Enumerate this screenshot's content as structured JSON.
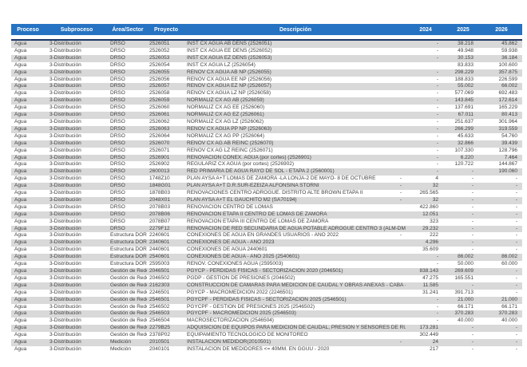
{
  "table": {
    "colors": {
      "header_bg": "#2573C2",
      "header_text": "#FFFFFF",
      "stripe": "#D9D9D9",
      "divider": "#1F3864",
      "text": "#3F3F3F"
    },
    "columns": [
      "Proceso",
      "Subproceso",
      "Área/Sector",
      "Proyecto",
      "Descripción",
      "2024",
      "2025",
      "2026"
    ],
    "rows": [
      {
        "proceso": "Agua",
        "subproceso": "3-Distribución",
        "area": "DRSO",
        "proyecto": "2526051",
        "descripcion": "INST CX AGUA AB DENS (2526051)",
        "dash": "",
        "y2024": "-",
        "y2025": "38.218",
        "y2026": "45.862"
      },
      {
        "proceso": "Agua",
        "subproceso": "3-Distribución",
        "area": "DRSO",
        "proyecto": "2526052",
        "descripcion": "INST CX AGUA EE DENS (2526052)",
        "dash": "",
        "y2024": "-",
        "y2025": "49.948",
        "y2026": "59.938"
      },
      {
        "proceso": "Agua",
        "subproceso": "3-Distribución",
        "area": "DRSO",
        "proyecto": "2526053",
        "descripcion": "INST CX AGUA EZ DENS (2526053)",
        "dash": "",
        "y2024": "-",
        "y2025": "30.153",
        "y2026": "36.184"
      },
      {
        "proceso": "Agua",
        "subproceso": "3-Distribución",
        "area": "DRSO",
        "proyecto": "2526054",
        "descripcion": "INST CX AGUA LZ (2526054)",
        "dash": "",
        "y2024": "",
        "y2025": "83.833",
        "y2026": "100.600"
      },
      {
        "proceso": "Agua",
        "subproceso": "3-Distribución",
        "area": "DRSO",
        "proyecto": "2526055",
        "descripcion": "RENOV CX AGUA AB NP (2526055)",
        "dash": "",
        "y2024": "-",
        "y2025": "298.229",
        "y2026": "357.875"
      },
      {
        "proceso": "Agua",
        "subproceso": "3-Distribución",
        "area": "DRSO",
        "proyecto": "2526056",
        "descripcion": "RENOV CX AGUA EE NP (2526056)",
        "dash": "",
        "y2024": "-",
        "y2025": "188.833",
        "y2026": "226.599"
      },
      {
        "proceso": "Agua",
        "subproceso": "3-Distribución",
        "area": "DRSO",
        "proyecto": "2526057",
        "descripcion": "RENOV CX AGUA EZ NP (2526057)",
        "dash": "",
        "y2024": "-",
        "y2025": "55.002",
        "y2026": "66.002"
      },
      {
        "proceso": "Agua",
        "subproceso": "3-Distribución",
        "area": "DRSO",
        "proyecto": "2526058",
        "descripcion": "RENOV CX AGUA LZ NP (2526058)",
        "dash": "",
        "y2024": "-",
        "y2025": "577.069",
        "y2026": "692.483"
      },
      {
        "proceso": "Agua",
        "subproceso": "3-Distribución",
        "area": "DRSO",
        "proyecto": "2526059",
        "descripcion": "NORMALIZ CX AG AB (2526059)",
        "dash": "",
        "y2024": "-",
        "y2025": "143.845",
        "y2026": "172.614"
      },
      {
        "proceso": "Agua",
        "subproceso": "3-Distribución",
        "area": "DRSO",
        "proyecto": "2526060",
        "descripcion": "NORMALIZ CX AG EE (2526060)",
        "dash": "",
        "y2024": "-",
        "y2025": "137.691",
        "y2026": "165.229"
      },
      {
        "proceso": "Agua",
        "subproceso": "3-Distribución",
        "area": "DRSO",
        "proyecto": "2526061",
        "descripcion": "NORMALIZ CX AG EZ (2526061)",
        "dash": "",
        "y2024": "-",
        "y2025": "67.011",
        "y2026": "80.413"
      },
      {
        "proceso": "Agua",
        "subproceso": "3-Distribución",
        "area": "DRSO",
        "proyecto": "2526062",
        "descripcion": "NORMALIZ CX AG LZ (2526062)",
        "dash": "",
        "y2024": "-",
        "y2025": "251.637",
        "y2026": "301.964"
      },
      {
        "proceso": "Agua",
        "subproceso": "3-Distribución",
        "area": "DRSO",
        "proyecto": "2526063",
        "descripcion": "RENOV CX AGUA PP NP (2526063)",
        "dash": "",
        "y2024": "-",
        "y2025": "266.299",
        "y2026": "319.559"
      },
      {
        "proceso": "Agua",
        "subproceso": "3-Distribución",
        "area": "DRSO",
        "proyecto": "2526064",
        "descripcion": "NORMALIZ CX AG PP (2526064)",
        "dash": "",
        "y2024": "-",
        "y2025": "45.633",
        "y2026": "54.760"
      },
      {
        "proceso": "Agua",
        "subproceso": "3-Distribución",
        "area": "DRSO",
        "proyecto": "2526070",
        "descripcion": "RENOV CX AG AB REINC (2526070)",
        "dash": "",
        "y2024": "-",
        "y2025": "32.866",
        "y2026": "39.439"
      },
      {
        "proceso": "Agua",
        "subproceso": "3-Distribución",
        "area": "DRSO",
        "proyecto": "2526071",
        "descripcion": "RENOV CX AG LZ REINC (2526071)",
        "dash": "",
        "y2024": "-",
        "y2025": "107.330",
        "y2026": "128.796"
      },
      {
        "proceso": "Agua",
        "subproceso": "3-Distribución",
        "area": "DRSO",
        "proyecto": "2526901",
        "descripcion": "RENOVACION CONEX. AGUA (por cortes) (2526901)",
        "dash": "",
        "y2024": "-",
        "y2025": "6.220",
        "y2026": "7.464"
      },
      {
        "proceso": "Agua",
        "subproceso": "3-Distribución",
        "area": "DRSO",
        "proyecto": "2526902",
        "descripcion": "REGULARIZ CX AGUA (por cortes) (2526902)",
        "dash": "",
        "y2024": "-",
        "y2025": "120.722",
        "y2026": "144.867"
      },
      {
        "proceso": "Agua",
        "subproceso": "3-Distribución",
        "area": "DRSO",
        "proyecto": "2600013",
        "descripcion": "RED PRIMARIA DE AGUA RAYO DE SOL - ETAPA 2 (2560001)",
        "dash": "",
        "y2024": "-",
        "y2025": "-",
        "y2026": "190.060"
      },
      {
        "proceso": "Agua",
        "subproceso": "3-Distribución",
        "area": "DRSO",
        "proyecto": "1748Z10",
        "descripcion": "PLAN AYSA A+T LOMAS DE ZAMORA -LA LONJA-2 DE MAYO- 8 DE OCTUBRE",
        "dash": "-",
        "y2024": "4",
        "y2025": "-",
        "y2026": "-"
      },
      {
        "proceso": "Agua",
        "subproceso": "3-Distribución",
        "area": "DRSO",
        "proyecto": "1848G01",
        "descripcion": "PLAN AYSA A+T D.R.SUR-EZEIZA ALFONSINA STORNI",
        "dash": "-",
        "y2024": "32",
        "y2025": "-",
        "y2026": "-"
      },
      {
        "proceso": "Agua",
        "subproceso": "3-Distribución",
        "area": "DRSO",
        "proyecto": "1878B03",
        "descripcion": "RENOVACIONES CENTRO ADROGUÉ. DISTRITO ALTE BROWN ETAPA II",
        "dash": "-",
        "y2024": "265.565",
        "y2025": "-",
        "y2026": "-"
      },
      {
        "proceso": "Agua",
        "subproceso": "3-Distribución",
        "area": "DRSO",
        "proyecto": "2048X01",
        "descripcion": "PLAN AYSA A+T EL GAUCHITO M2 (SA70194)",
        "dash": "-",
        "y2024": "32",
        "y2025": "-",
        "y2026": "-"
      },
      {
        "proceso": "Agua",
        "subproceso": "3-Distribución",
        "area": "DRSO",
        "proyecto": "2078B03",
        "descripcion": "RENOVACIÓN CENTRO DE LOMAS",
        "dash": "",
        "y2024": "422.860",
        "y2025": "-",
        "y2026": "-"
      },
      {
        "proceso": "Agua",
        "subproceso": "3-Distribución",
        "area": "DRSO",
        "proyecto": "2078B06",
        "descripcion": "RENOVACIÓN ETAPA II CENTRO DE LOMAS DE ZAMORA",
        "dash": "",
        "y2024": "12.051",
        "y2025": "-",
        "y2026": "-"
      },
      {
        "proceso": "Agua",
        "subproceso": "3-Distribución",
        "area": "DRSO",
        "proyecto": "2078B07",
        "descripcion": "RENOVACIÓN ETAPA III CENTRO DE LOMAS DE ZAMORA",
        "dash": "",
        "y2024": "323",
        "y2025": "-",
        "y2026": "-"
      },
      {
        "proceso": "Agua",
        "subproceso": "3-Distribución",
        "area": "DRSO",
        "proyecto": "2279F12",
        "descripcion": "RENOVACIÓN DE RED SECUNDARIA DE AGUA POTABLE ADROGUÉ CENTRO 3 (ALM-DMA005)",
        "dash": "",
        "y2024": "29.232",
        "y2025": "-",
        "y2026": "-"
      },
      {
        "proceso": "Agua",
        "subproceso": "3-Distribución",
        "area": "Estructura DOR",
        "proyecto": "2240601",
        "descripcion": "CONEXIONES DE AGUA EN GRANDES USUARIOS - AÑO 2022",
        "dash": "-",
        "y2024": "222",
        "y2025": "-",
        "y2026": "-"
      },
      {
        "proceso": "Agua",
        "subproceso": "3-Distribución",
        "area": "Estructura DOR",
        "proyecto": "2340601",
        "descripcion": "CONEXIONES DE AGUA - AÑO 2023",
        "dash": "",
        "y2024": "4.296",
        "y2025": "-",
        "y2026": "-"
      },
      {
        "proceso": "Agua",
        "subproceso": "3-Distribución",
        "area": "Estructura DOR",
        "proyecto": "2440601",
        "descripcion": "CONEXIONES DE AGUA 2440601",
        "dash": "",
        "y2024": "35.609",
        "y2025": "-",
        "y2026": "-"
      },
      {
        "proceso": "Agua",
        "subproceso": "3-Distribución",
        "area": "Estructura DOR",
        "proyecto": "2540601",
        "descripcion": "CONEXIONES DE AGUA - AÑO 2025 (2540601)",
        "dash": "",
        "y2024": "-",
        "y2025": "86.002",
        "y2026": "86.002"
      },
      {
        "proceso": "Agua",
        "subproceso": "3-Distribución",
        "area": "Estructura DOR",
        "proyecto": "2595003",
        "descripcion": "RENOV. CONEXIONES AGUA (2595003)",
        "dash": "",
        "y2024": "-",
        "y2025": "50.000",
        "y2026": "60.000"
      },
      {
        "proceso": "Agua",
        "subproceso": "3-Distribución",
        "area": "Gestión de Redes",
        "proyecto": "2046501",
        "descripcion": "PGYCP - PÉRDIDAS FÍSICAS - SECTORIZACIÓN 2020 (2046501)",
        "dash": "",
        "y2024": "838.143",
        "y2025": "269.609",
        "y2026": "-"
      },
      {
        "proceso": "Agua",
        "subproceso": "3-Distribución",
        "area": "Gestión de Redes",
        "proyecto": "2046502",
        "descripcion": "PGDP - GESTIÓN DE PRESIONES (2046502)",
        "dash": "",
        "y2024": "47.275",
        "y2025": "165.551",
        "y2026": "-"
      },
      {
        "proceso": "Agua",
        "subproceso": "3-Distribución",
        "area": "Gestión de Redes",
        "proyecto": "2162303",
        "descripcion": "CONSTRUCCIÓN DE CÁMARAS PARA MEDICIÓN DE CAUDAL Y OBRAS ANEXAS - CABA - MOR - I",
        "dash": "",
        "y2024": "11.585",
        "y2025": "-",
        "y2026": "-"
      },
      {
        "proceso": "Agua",
        "subproceso": "3-Distribución",
        "area": "Gestión de Redes",
        "proyecto": "2246501",
        "descripcion": "PGYCP - MACROMEDICIÓN 2022 (2246501)",
        "dash": "",
        "y2024": "31.241",
        "y2025": "391.713",
        "y2026": "-"
      },
      {
        "proceso": "Agua",
        "subproceso": "3-Distribución",
        "area": "Gestión de Redes",
        "proyecto": "2546501",
        "descripcion": "PGYCPF - PÉRDIDAS FÍSICAS - SECTORIZACIÓN 2025 (2546501)",
        "dash": "",
        "y2024": "-",
        "y2025": "21.000",
        "y2026": "21.000"
      },
      {
        "proceso": "Agua",
        "subproceso": "3-Distribución",
        "area": "Gestión de Redes",
        "proyecto": "2546502",
        "descripcion": "PGYCPF - GESTIÓN DE PRESIONES 2025 (2546502)",
        "dash": "",
        "y2024": "-",
        "y2025": "66.171",
        "y2026": "66.171"
      },
      {
        "proceso": "Agua",
        "subproceso": "3-Distribución",
        "area": "Gestión de Redes",
        "proyecto": "2546503",
        "descripcion": "PGYCPF - MACROMEDICIÓN 2025 (2546503)",
        "dash": "",
        "y2024": "-",
        "y2025": "370.283",
        "y2026": "370.283"
      },
      {
        "proceso": "Agua",
        "subproceso": "3-Distribución",
        "area": "Gestión de Redes",
        "proyecto": "2546504",
        "descripcion": "MACROSECTORIZACIÓN (2546504)",
        "dash": "",
        "y2024": "-",
        "y2025": "40.000",
        "y2026": "40.000"
      },
      {
        "proceso": "Agua",
        "subproceso": "3-Distribución",
        "area": "Gestión de Redes",
        "proyecto": "2279B25",
        "descripcion": "ADQUISICIÓN DE EQUIPOS PARA MEDICION DE CAUDAL, PRESIÓN Y SENSORES DE RUIDO.",
        "dash": "",
        "y2024": "173.281",
        "y2025": "-",
        "y2026": "-"
      },
      {
        "proceso": "Agua",
        "subproceso": "3-Distribución",
        "area": "Gestión de Redes",
        "proyecto": "2378P02",
        "descripcion": "EQUIPAMIENTO TECNOLÓGICO DE MONITOREO",
        "dash": "",
        "y2024": "302.449",
        "y2025": "-",
        "y2026": "-"
      },
      {
        "proceso": "Agua",
        "subproceso": "3-Distribución",
        "area": "Medición",
        "proyecto": "2010501",
        "descripcion": "INSTALACION MEDIDOR(2010501)",
        "dash": "-",
        "y2024": "24",
        "y2025": "-",
        "y2026": "-"
      },
      {
        "proceso": "Agua",
        "subproceso": "3-Distribución",
        "area": "Medición",
        "proyecto": "2040101",
        "descripcion": "INSTALACIÓN DE MEDIDORES <= 40MM. EN GGUU - 2020",
        "dash": "",
        "y2024": "217",
        "y2025": "-",
        "y2026": "-"
      }
    ]
  }
}
